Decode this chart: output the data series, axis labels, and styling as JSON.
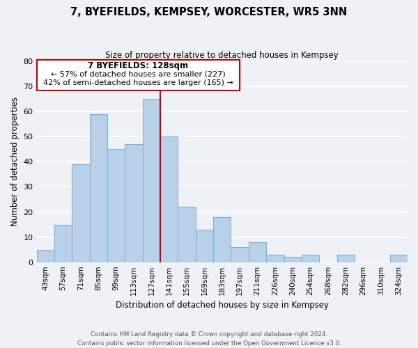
{
  "title": "7, BYEFIELDS, KEMPSEY, WORCESTER, WR5 3NN",
  "subtitle": "Size of property relative to detached houses in Kempsey",
  "xlabel": "Distribution of detached houses by size in Kempsey",
  "ylabel": "Number of detached properties",
  "bar_labels": [
    "43sqm",
    "57sqm",
    "71sqm",
    "85sqm",
    "99sqm",
    "113sqm",
    "127sqm",
    "141sqm",
    "155sqm",
    "169sqm",
    "183sqm",
    "197sqm",
    "211sqm",
    "226sqm",
    "240sqm",
    "254sqm",
    "268sqm",
    "282sqm",
    "296sqm",
    "310sqm",
    "324sqm"
  ],
  "bar_values": [
    5,
    15,
    39,
    59,
    45,
    47,
    65,
    50,
    22,
    13,
    18,
    6,
    8,
    3,
    2,
    3,
    0,
    3,
    0,
    0,
    3
  ],
  "highlight_bar_index": 6,
  "bar_color": "#b8d0e8",
  "bar_edge_color": "#7aadd0",
  "highlight_line_color": "#cc0000",
  "box_color": "#cc0000",
  "ylim": [
    0,
    80
  ],
  "yticks": [
    0,
    10,
    20,
    30,
    40,
    50,
    60,
    70,
    80
  ],
  "annotation_title": "7 BYEFIELDS: 128sqm",
  "annotation_line1": "← 57% of detached houses are smaller (227)",
  "annotation_line2": "42% of semi-detached houses are larger (165) →",
  "footer_line1": "Contains HM Land Registry data © Crown copyright and database right 2024.",
  "footer_line2": "Contains public sector information licensed under the Open Government Licence v3.0.",
  "background_color": "#eef2f7",
  "grid_color": "#ffffff"
}
